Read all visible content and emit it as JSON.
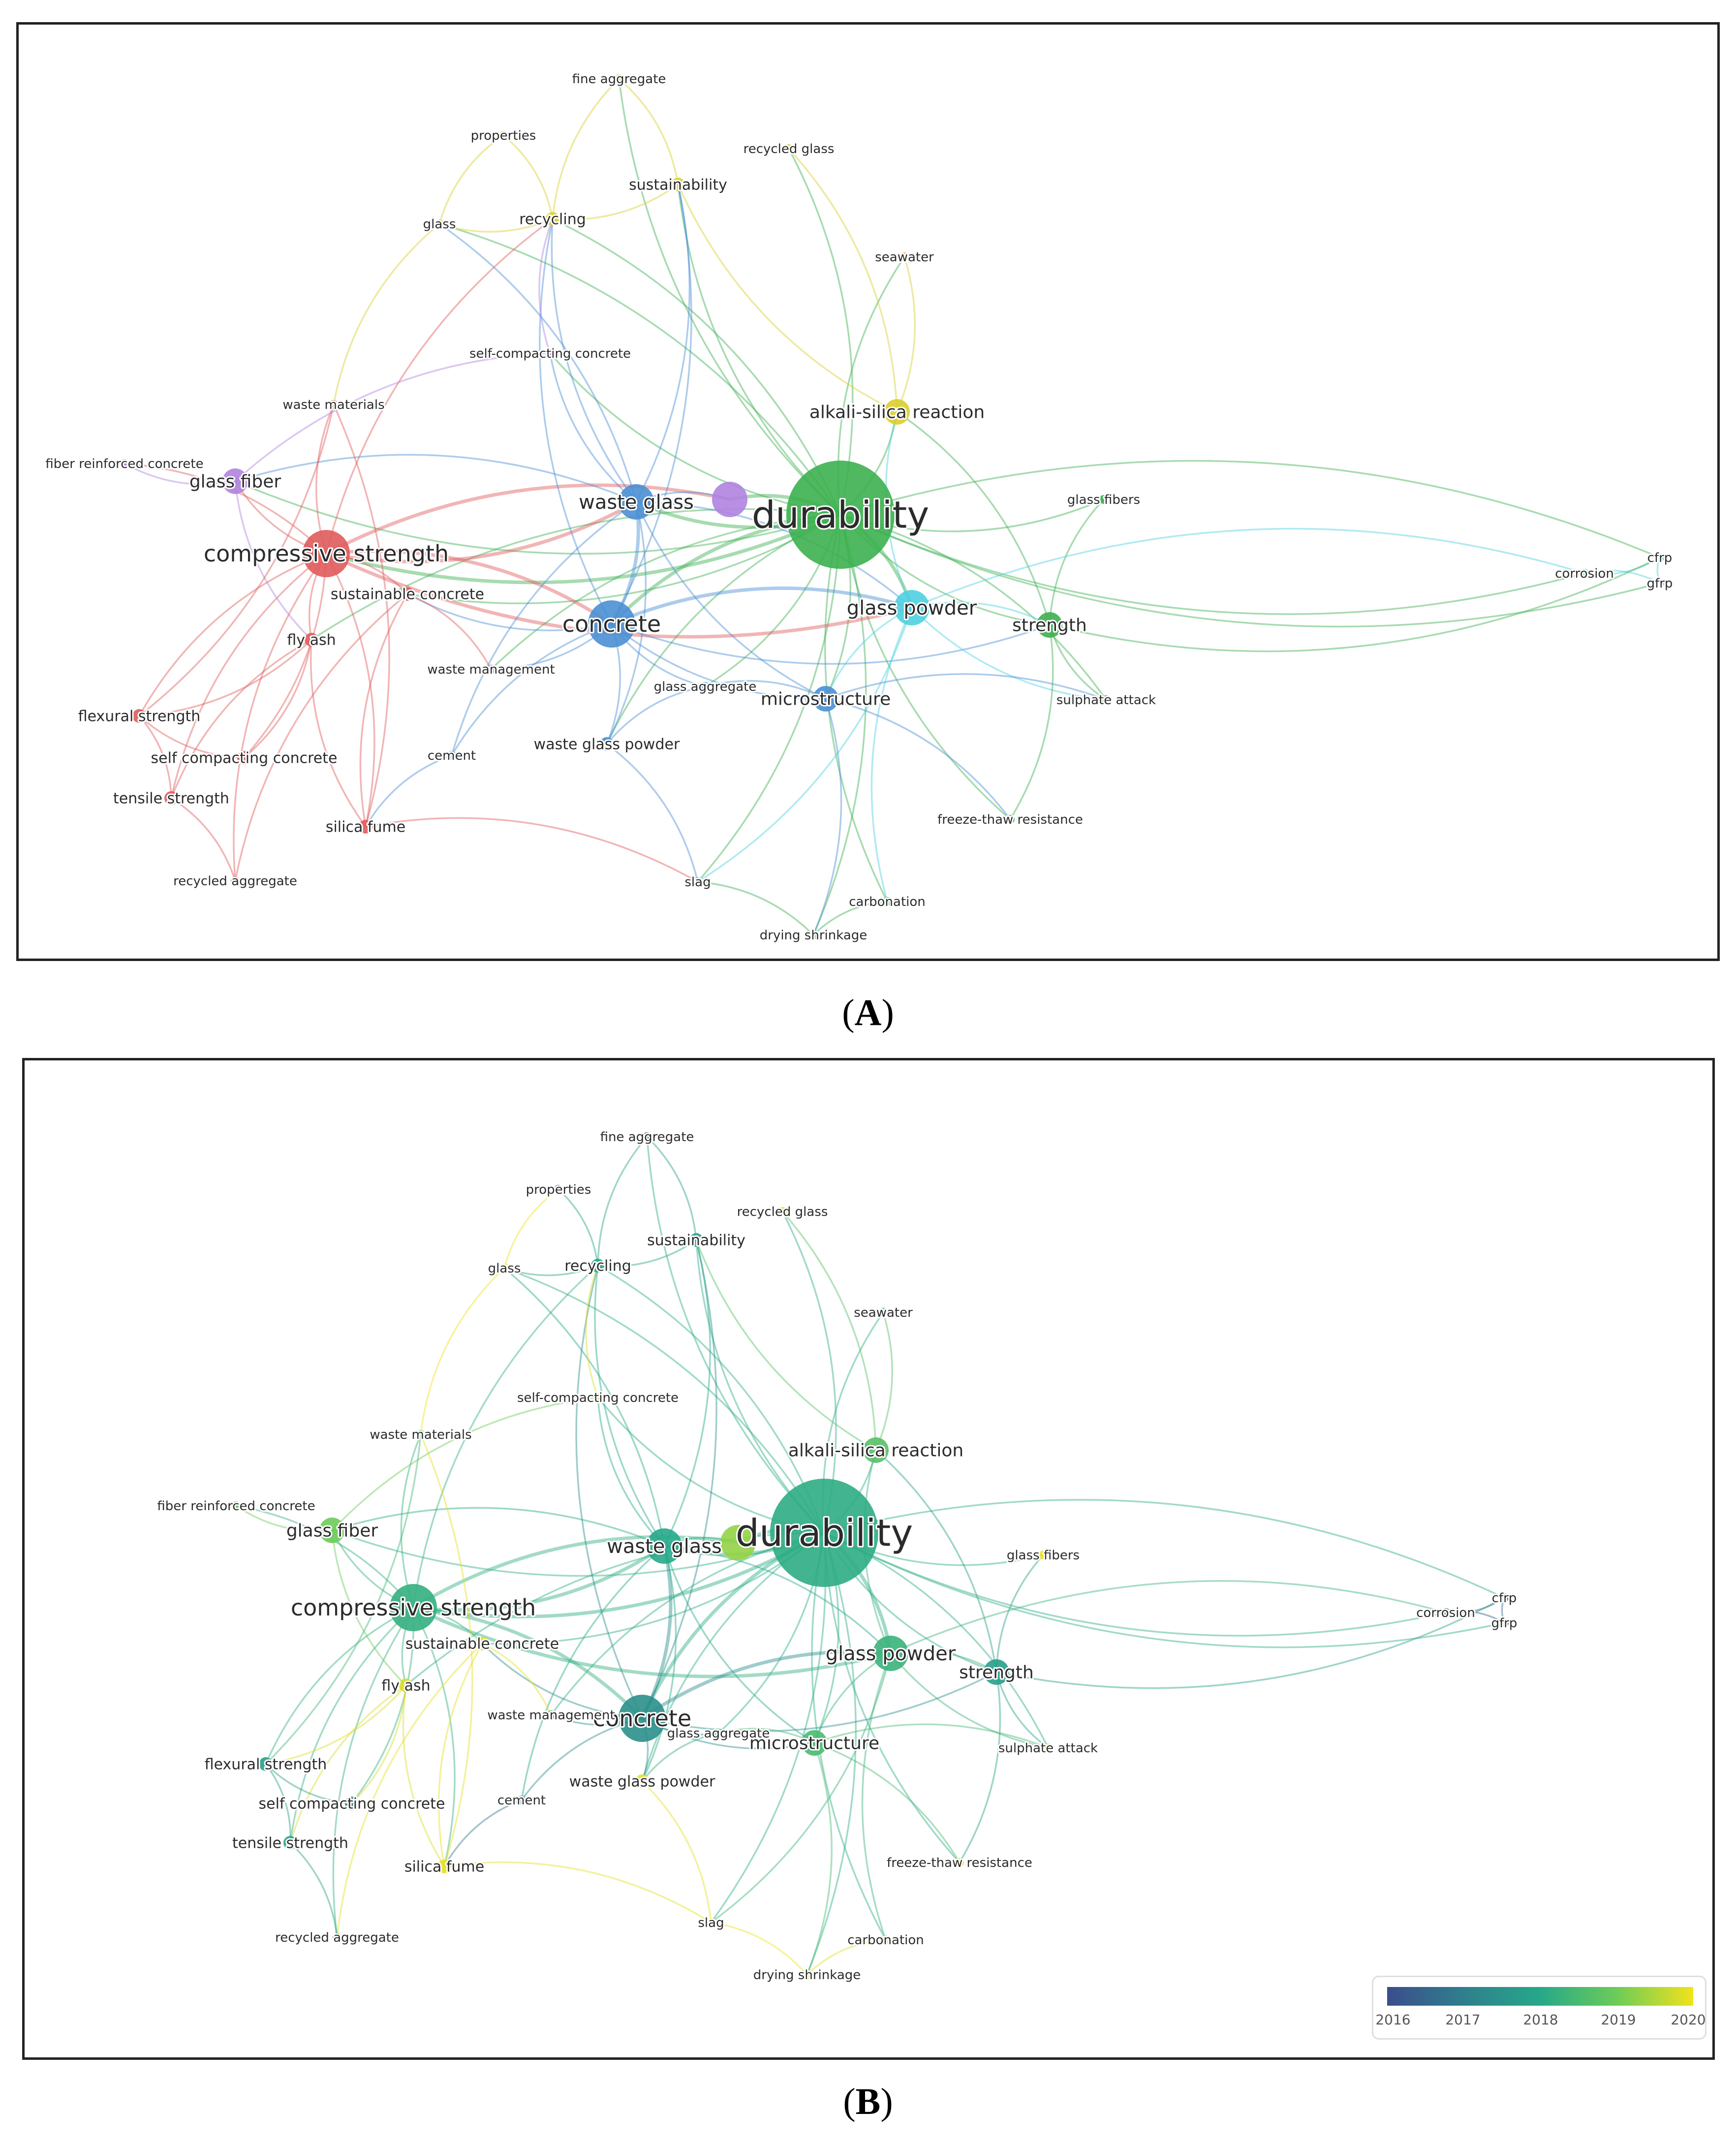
{
  "panels": {
    "a": {
      "caption_letter": "A"
    },
    "b": {
      "caption_letter": "B"
    }
  },
  "cluster_colors": {
    "red": "#e05b5b",
    "blue": "#4a8fd4",
    "green": "#3cb04f",
    "yellow": "#d9cf2b",
    "purple": "#b083e0",
    "cyan": "#4ed0e0",
    "orange": "#f0923a"
  },
  "overlay_scale": {
    "ticks": [
      "2016",
      "2017",
      "2018",
      "2019",
      "2020"
    ],
    "min_year": 2016,
    "max_year": 2020,
    "colors": [
      "#3b4d8c",
      "#2f7f8d",
      "#26a889",
      "#6ccc58",
      "#f2e21c"
    ]
  },
  "nodes": [
    {
      "id": "durability",
      "label": "durability",
      "cluster": "green",
      "year": 2018.1,
      "weight": 10
    },
    {
      "id": "compressive_strength",
      "label": "compressive strength",
      "cluster": "red",
      "year": 2018.2,
      "weight": 5
    },
    {
      "id": "concrete",
      "label": "concrete",
      "cluster": "blue",
      "year": 2017.4,
      "weight": 5
    },
    {
      "id": "waste_glass",
      "label": "waste glass",
      "cluster": "blue",
      "year": 2018.0,
      "weight": 4
    },
    {
      "id": "unlabeled_purple",
      "label": "",
      "cluster": "purple",
      "year": 2019.3,
      "weight": 4
    },
    {
      "id": "glass_powder",
      "label": "glass powder",
      "cluster": "cyan",
      "year": 2018.3,
      "weight": 4
    },
    {
      "id": "strength",
      "label": "strength",
      "cluster": "green",
      "year": 2017.8,
      "weight": 3
    },
    {
      "id": "microstructure",
      "label": "microstructure",
      "cluster": "blue",
      "year": 2018.5,
      "weight": 3
    },
    {
      "id": "alkali_silica_reaction",
      "label": "alkali-silica reaction",
      "cluster": "yellow",
      "year": 2018.7,
      "weight": 3
    },
    {
      "id": "glass_fiber",
      "label": "glass fiber",
      "cluster": "purple",
      "year": 2019.0,
      "weight": 3
    },
    {
      "id": "fly_ash",
      "label": "fly ash",
      "cluster": "red",
      "year": 2019.8,
      "weight": 2
    },
    {
      "id": "sustainable_concrete",
      "label": "sustainable concrete",
      "cluster": "red",
      "year": 2019.9,
      "weight": 2
    },
    {
      "id": "flexural_strength",
      "label": "flexural strength",
      "cluster": "red",
      "year": 2017.8,
      "weight": 2
    },
    {
      "id": "self_compacting_concrete_r",
      "label": "self compacting concrete",
      "cluster": "red",
      "year": 2017.0,
      "weight": 2
    },
    {
      "id": "tensile_strength",
      "label": "tensile strength",
      "cluster": "red",
      "year": 2017.9,
      "weight": 2
    },
    {
      "id": "silica_fume",
      "label": "silica fume",
      "cluster": "red",
      "year": 2019.9,
      "weight": 2
    },
    {
      "id": "recycled_aggregate",
      "label": "recycled aggregate",
      "cluster": "red",
      "year": 2017.6,
      "weight": 1
    },
    {
      "id": "waste_materials",
      "label": "waste materials",
      "cluster": "red",
      "year": 2018.4,
      "weight": 1
    },
    {
      "id": "fiber_reinforced_concrete",
      "label": "fiber reinforced concrete",
      "cluster": "purple",
      "year": 2018.6,
      "weight": 1
    },
    {
      "id": "self_compacting_concrete_p",
      "label": "self-compacting concrete",
      "cluster": "purple",
      "year": 2019.8,
      "weight": 1
    },
    {
      "id": "waste_management",
      "label": "waste management",
      "cluster": "blue",
      "year": 2017.5,
      "weight": 1
    },
    {
      "id": "cement",
      "label": "cement",
      "cluster": "blue",
      "year": 2016.9,
      "weight": 1
    },
    {
      "id": "waste_glass_powder",
      "label": "waste glass powder",
      "cluster": "blue",
      "year": 2019.9,
      "weight": 2
    },
    {
      "id": "glass_aggregate",
      "label": "glass aggregate",
      "cluster": "blue",
      "year": 2018.2,
      "weight": 1
    },
    {
      "id": "recycling",
      "label": "recycling",
      "cluster": "yellow",
      "year": 2017.9,
      "weight": 2
    },
    {
      "id": "sustainability",
      "label": "sustainability",
      "cluster": "yellow",
      "year": 2017.8,
      "weight": 2
    },
    {
      "id": "glass",
      "label": "glass",
      "cluster": "yellow",
      "year": 2020.0,
      "weight": 1
    },
    {
      "id": "properties",
      "label": "properties",
      "cluster": "yellow",
      "year": 2016.3,
      "weight": 1
    },
    {
      "id": "fine_aggregate",
      "label": "fine aggregate",
      "cluster": "yellow",
      "year": 2016.4,
      "weight": 1
    },
    {
      "id": "recycled_glass",
      "label": "recycled glass",
      "cluster": "yellow",
      "year": 2019.9,
      "weight": 1
    },
    {
      "id": "seawater",
      "label": "seawater",
      "cluster": "orange",
      "year": 2018.0,
      "weight": 1
    },
    {
      "id": "glass_fibers",
      "label": "glass fibers",
      "cluster": "green",
      "year": 2020.0,
      "weight": 1
    },
    {
      "id": "sulphate_attack",
      "label": "sulphate attack",
      "cluster": "green",
      "year": 2020.0,
      "weight": 1
    },
    {
      "id": "freeze_thaw_resistance",
      "label": "freeze-thaw resistance",
      "cluster": "green",
      "year": 2019.9,
      "weight": 1
    },
    {
      "id": "slag",
      "label": "slag",
      "cluster": "green",
      "year": 2020.0,
      "weight": 1
    },
    {
      "id": "carbonation",
      "label": "carbonation",
      "cluster": "green",
      "year": 2019.9,
      "weight": 1
    },
    {
      "id": "drying_shrinkage",
      "label": "drying shrinkage",
      "cluster": "green",
      "year": 2019.9,
      "weight": 1
    },
    {
      "id": "corrosion",
      "label": "corrosion",
      "cluster": "cyan",
      "year": 2016.4,
      "weight": 1
    },
    {
      "id": "cfrp",
      "label": "cfrp",
      "cluster": "cyan",
      "year": 2016.5,
      "weight": 1
    },
    {
      "id": "gfrp",
      "label": "gfrp",
      "cluster": "cyan",
      "year": 2016.5,
      "weight": 1
    }
  ],
  "links": [
    [
      "durability",
      "compressive_strength"
    ],
    [
      "durability",
      "concrete"
    ],
    [
      "durability",
      "waste_glass"
    ],
    [
      "durability",
      "unlabeled_purple"
    ],
    [
      "durability",
      "glass_powder"
    ],
    [
      "durability",
      "strength"
    ],
    [
      "durability",
      "microstructure"
    ],
    [
      "durability",
      "alkali_silica_reaction"
    ],
    [
      "durability",
      "glass_fiber"
    ],
    [
      "durability",
      "fly_ash"
    ],
    [
      "durability",
      "sustainable_concrete"
    ],
    [
      "durability",
      "recycling"
    ],
    [
      "durability",
      "sustainability"
    ],
    [
      "durability",
      "glass"
    ],
    [
      "durability",
      "seawater"
    ],
    [
      "durability",
      "glass_fibers"
    ],
    [
      "durability",
      "sulphate_attack"
    ],
    [
      "durability",
      "freeze_thaw_resistance"
    ],
    [
      "durability",
      "slag"
    ],
    [
      "durability",
      "carbonation"
    ],
    [
      "durability",
      "drying_shrinkage"
    ],
    [
      "durability",
      "corrosion"
    ],
    [
      "durability",
      "cfrp"
    ],
    [
      "durability",
      "gfrp"
    ],
    [
      "durability",
      "self_compacting_concrete_p"
    ],
    [
      "durability",
      "waste_management"
    ],
    [
      "durability",
      "glass_aggregate"
    ],
    [
      "durability",
      "recycled_glass"
    ],
    [
      "durability",
      "fine_aggregate"
    ],
    [
      "durability",
      "waste_glass_powder"
    ],
    [
      "compressive_strength",
      "concrete"
    ],
    [
      "compressive_strength",
      "waste_glass"
    ],
    [
      "compressive_strength",
      "glass_fiber"
    ],
    [
      "compressive_strength",
      "fly_ash"
    ],
    [
      "compressive_strength",
      "sustainable_concrete"
    ],
    [
      "compressive_strength",
      "flexural_strength"
    ],
    [
      "compressive_strength",
      "self_compacting_concrete_r"
    ],
    [
      "compressive_strength",
      "tensile_strength"
    ],
    [
      "compressive_strength",
      "silica_fume"
    ],
    [
      "compressive_strength",
      "recycled_aggregate"
    ],
    [
      "compressive_strength",
      "waste_materials"
    ],
    [
      "compressive_strength",
      "fiber_reinforced_concrete"
    ],
    [
      "compressive_strength",
      "recycling"
    ],
    [
      "compressive_strength",
      "glass_powder"
    ],
    [
      "compressive_strength",
      "unlabeled_purple"
    ],
    [
      "concrete",
      "waste_glass"
    ],
    [
      "concrete",
      "glass_powder"
    ],
    [
      "concrete",
      "microstructure"
    ],
    [
      "concrete",
      "waste_management"
    ],
    [
      "concrete",
      "cement"
    ],
    [
      "concrete",
      "waste_glass_powder"
    ],
    [
      "concrete",
      "glass_aggregate"
    ],
    [
      "concrete",
      "recycling"
    ],
    [
      "concrete",
      "sustainability"
    ],
    [
      "concrete",
      "sustainable_concrete"
    ],
    [
      "concrete",
      "strength"
    ],
    [
      "waste_glass",
      "glass_powder"
    ],
    [
      "waste_glass",
      "microstructure"
    ],
    [
      "waste_glass",
      "recycling"
    ],
    [
      "waste_glass",
      "sustainability"
    ],
    [
      "waste_glass",
      "self_compacting_concrete_p"
    ],
    [
      "waste_glass",
      "cement"
    ],
    [
      "waste_glass",
      "unlabeled_purple"
    ],
    [
      "waste_glass",
      "glass_fiber"
    ],
    [
      "waste_glass",
      "waste_glass_powder"
    ],
    [
      "waste_glass",
      "glass"
    ],
    [
      "glass_powder",
      "strength"
    ],
    [
      "glass_powder",
      "microstructure"
    ],
    [
      "glass_powder",
      "alkali_silica_reaction"
    ],
    [
      "glass_powder",
      "sulphate_attack"
    ],
    [
      "glass_powder",
      "slag"
    ],
    [
      "glass_powder",
      "carbonation"
    ],
    [
      "strength",
      "glass_fibers"
    ],
    [
      "strength",
      "sulphate_attack"
    ],
    [
      "strength",
      "freeze_thaw_resistance"
    ],
    [
      "strength",
      "alkali_silica_reaction"
    ],
    [
      "microstructure",
      "drying_shrinkage"
    ],
    [
      "microstructure",
      "glass_aggregate"
    ],
    [
      "microstructure",
      "freeze_thaw_resistance"
    ],
    [
      "alkali_silica_reaction",
      "recycled_glass"
    ],
    [
      "alkali_silica_reaction",
      "sustainability"
    ],
    [
      "alkali_silica_reaction",
      "seawater"
    ],
    [
      "glass_fiber",
      "fiber_reinforced_concrete"
    ],
    [
      "glass_fiber",
      "fly_ash"
    ],
    [
      "glass_fiber",
      "self_compacting_concrete_p"
    ],
    [
      "fly_ash",
      "silica_fume"
    ],
    [
      "fly_ash",
      "flexural_strength"
    ],
    [
      "fly_ash",
      "tensile_strength"
    ],
    [
      "fly_ash",
      "self_compacting_concrete_r"
    ],
    [
      "sustainable_concrete",
      "silica_fume"
    ],
    [
      "sustainable_concrete",
      "waste_management"
    ],
    [
      "sustainable_concrete",
      "recycled_aggregate"
    ],
    [
      "flexural_strength",
      "tensile_strength"
    ],
    [
      "flexural_strength",
      "self_compacting_concrete_r"
    ],
    [
      "tensile_strength",
      "recycled_aggregate"
    ],
    [
      "silica_fume",
      "waste_materials"
    ],
    [
      "silica_fume",
      "slag"
    ],
    [
      "recycling",
      "sustainability"
    ],
    [
      "recycling",
      "glass"
    ],
    [
      "recycling",
      "properties"
    ],
    [
      "recycling",
      "fine_aggregate"
    ],
    [
      "sustainability",
      "fine_aggregate"
    ],
    [
      "glass",
      "properties"
    ],
    [
      "glass",
      "waste_materials"
    ],
    [
      "waste_materials",
      "flexural_strength"
    ],
    [
      "corrosion",
      "cfrp"
    ],
    [
      "corrosion",
      "gfrp"
    ],
    [
      "cfrp",
      "gfrp"
    ],
    [
      "glass_powder",
      "corrosion"
    ],
    [
      "strength",
      "cfrp"
    ],
    [
      "slag",
      "drying_shrinkage"
    ],
    [
      "carbonation",
      "drying_shrinkage"
    ],
    [
      "waste_glass_powder",
      "slag"
    ],
    [
      "cement",
      "silica_fume"
    ],
    [
      "self_compacting_concrete_p",
      "recycling"
    ],
    [
      "glass_aggregate",
      "waste_glass_powder"
    ],
    [
      "microstructure",
      "sulphate_attack"
    ]
  ]
}
